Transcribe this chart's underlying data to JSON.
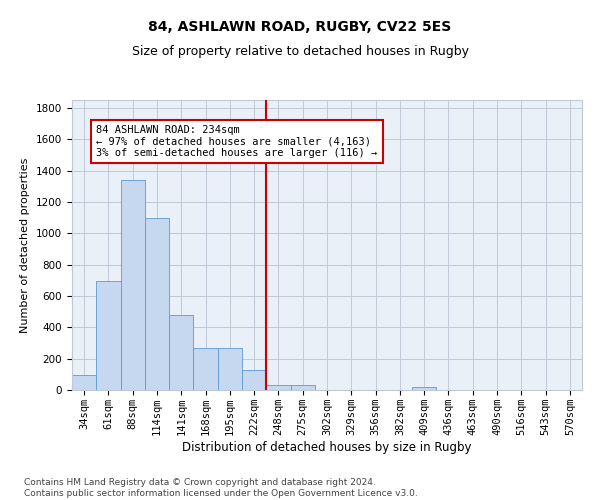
{
  "title1": "84, ASHLAWN ROAD, RUGBY, CV22 5ES",
  "title2": "Size of property relative to detached houses in Rugby",
  "xlabel": "Distribution of detached houses by size in Rugby",
  "ylabel": "Number of detached properties",
  "categories": [
    "34sqm",
    "61sqm",
    "88sqm",
    "114sqm",
    "141sqm",
    "168sqm",
    "195sqm",
    "222sqm",
    "248sqm",
    "275sqm",
    "302sqm",
    "329sqm",
    "356sqm",
    "382sqm",
    "409sqm",
    "436sqm",
    "463sqm",
    "490sqm",
    "516sqm",
    "543sqm",
    "570sqm"
  ],
  "values": [
    95,
    695,
    1340,
    1095,
    480,
    265,
    265,
    125,
    30,
    30,
    0,
    0,
    0,
    0,
    20,
    0,
    0,
    0,
    0,
    0,
    0
  ],
  "bar_color": "#c5d8f0",
  "bar_edge_color": "#5b9bd5",
  "vline_x": 7.5,
  "vline_color": "#cc0000",
  "annotation_text": "84 ASHLAWN ROAD: 234sqm\n← 97% of detached houses are smaller (4,163)\n3% of semi-detached houses are larger (116) →",
  "annotation_box_color": "#ffffff",
  "annotation_box_edge": "#cc0000",
  "ylim": [
    0,
    1850
  ],
  "yticks": [
    0,
    200,
    400,
    600,
    800,
    1000,
    1200,
    1400,
    1600,
    1800
  ],
  "grid_color": "#c0c9d8",
  "bg_color": "#eaf0f8",
  "footer": "Contains HM Land Registry data © Crown copyright and database right 2024.\nContains public sector information licensed under the Open Government Licence v3.0.",
  "title1_fontsize": 10,
  "title2_fontsize": 9,
  "xlabel_fontsize": 8.5,
  "ylabel_fontsize": 8,
  "tick_fontsize": 7.5,
  "annotation_fontsize": 7.5,
  "footer_fontsize": 6.5
}
